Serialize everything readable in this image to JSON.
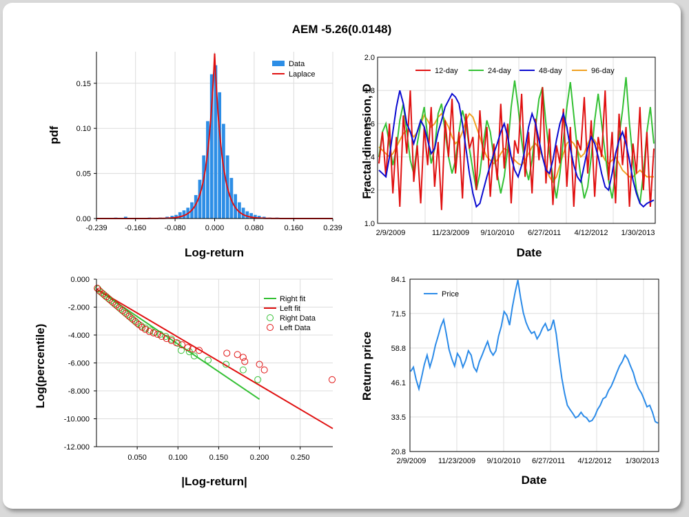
{
  "title": "AEM -5.26(0.0148)",
  "colors": {
    "data_blue": "#2d8ee6",
    "fit_red": "#e01010",
    "c12": "#e01010",
    "c24": "#33c033",
    "c48": "#0a0ad0",
    "c96": "#f0a020",
    "price": "#2a8ae8",
    "right_green": "#33c033",
    "left_red": "#e01010"
  },
  "chart_data": [
    {
      "type": "bar",
      "name": "pdf",
      "xlabel": "Log-return",
      "ylabel": "pdf",
      "xlim": [
        -0.239,
        0.239
      ],
      "ylim": [
        0,
        0.185
      ],
      "xticks": [
        "-0.239",
        "-0.160",
        "-0.080",
        "0.000",
        "0.080",
        "0.160",
        "0.239"
      ],
      "xtick_values": [
        -0.239,
        -0.16,
        -0.08,
        0,
        0.08,
        0.16,
        0.239
      ],
      "yticks": [
        "0.00",
        "0.05",
        "0.10",
        "0.15"
      ],
      "ytick_values": [
        0,
        0.05,
        0.1,
        0.15
      ],
      "legend": [
        "Data",
        "Laplace"
      ],
      "legend_position": "top-right",
      "laplace": {
        "mu": 0.0,
        "peak": 0.183,
        "scale": 0.0155
      },
      "bins": [
        {
          "x": -0.2,
          "y": 0.001
        },
        {
          "x": -0.18,
          "y": 0.002
        },
        {
          "x": -0.132,
          "y": 0.001
        },
        {
          "x": -0.11,
          "y": 0.001
        },
        {
          "x": -0.096,
          "y": 0.002
        },
        {
          "x": -0.086,
          "y": 0.003
        },
        {
          "x": -0.078,
          "y": 0.004
        },
        {
          "x": -0.07,
          "y": 0.007
        },
        {
          "x": -0.062,
          "y": 0.009
        },
        {
          "x": -0.054,
          "y": 0.012
        },
        {
          "x": -0.046,
          "y": 0.018
        },
        {
          "x": -0.038,
          "y": 0.026
        },
        {
          "x": -0.03,
          "y": 0.043
        },
        {
          "x": -0.022,
          "y": 0.07
        },
        {
          "x": -0.014,
          "y": 0.108
        },
        {
          "x": -0.006,
          "y": 0.16
        },
        {
          "x": 0.002,
          "y": 0.17
        },
        {
          "x": 0.01,
          "y": 0.14
        },
        {
          "x": 0.018,
          "y": 0.105
        },
        {
          "x": 0.026,
          "y": 0.07
        },
        {
          "x": 0.034,
          "y": 0.045
        },
        {
          "x": 0.042,
          "y": 0.027
        },
        {
          "x": 0.05,
          "y": 0.018
        },
        {
          "x": 0.058,
          "y": 0.012
        },
        {
          "x": 0.066,
          "y": 0.008
        },
        {
          "x": 0.074,
          "y": 0.006
        },
        {
          "x": 0.082,
          "y": 0.004
        },
        {
          "x": 0.09,
          "y": 0.003
        },
        {
          "x": 0.1,
          "y": 0.002
        },
        {
          "x": 0.112,
          "y": 0.001
        },
        {
          "x": 0.126,
          "y": 0.001
        }
      ]
    },
    {
      "type": "line",
      "name": "fractal",
      "xlabel": "Date",
      "ylabel": "Fractal dimension, D",
      "ylim": [
        1.0,
        2.0
      ],
      "yticks": [
        "1.0",
        "1.2",
        "1.4",
        "1.6",
        "1.8",
        "2.0"
      ],
      "ytick_values": [
        1.0,
        1.2,
        1.4,
        1.6,
        1.8,
        2.0
      ],
      "xticks": [
        "2/9/2009",
        "11/23/2009",
        "9/10/2010",
        "6/27/2011",
        "4/12/2012",
        "1/30/2013"
      ],
      "legend_position": "top-left",
      "series": [
        {
          "name": "12-day",
          "values": [
            1.36,
            1.55,
            1.28,
            1.6,
            1.18,
            1.52,
            1.1,
            1.65,
            1.42,
            1.8,
            1.25,
            1.47,
            1.12,
            1.58,
            1.35,
            1.7,
            1.22,
            1.49,
            1.08,
            1.62,
            1.4,
            1.75,
            1.3,
            1.55,
            1.15,
            1.66,
            1.45,
            1.52,
            1.2,
            1.68,
            1.38,
            1.58,
            1.16,
            1.48,
            1.26,
            1.72,
            1.33,
            1.6,
            1.12,
            1.5,
            1.42,
            1.78,
            1.28,
            1.55,
            1.18,
            1.63,
            1.38,
            1.82,
            1.24,
            1.57,
            1.11,
            1.47,
            1.36,
            1.69,
            1.22,
            1.58,
            1.1,
            1.5,
            1.44,
            1.76,
            1.3,
            1.62,
            1.16,
            1.52,
            1.4,
            1.8,
            1.26,
            1.55,
            1.12,
            1.66,
            1.35,
            1.58,
            1.1,
            1.48,
            1.3,
            1.7,
            1.2,
            1.55,
            1.1,
            1.45
          ]
        },
        {
          "name": "24-day",
          "values": [
            1.4,
            1.55,
            1.6,
            1.48,
            1.35,
            1.45,
            1.62,
            1.72,
            1.55,
            1.38,
            1.3,
            1.48,
            1.6,
            1.7,
            1.52,
            1.36,
            1.45,
            1.66,
            1.72,
            1.55,
            1.4,
            1.3,
            1.38,
            1.55,
            1.68,
            1.6,
            1.45,
            1.32,
            1.2,
            1.3,
            1.48,
            1.62,
            1.55,
            1.4,
            1.3,
            1.18,
            1.28,
            1.45,
            1.7,
            1.86,
            1.7,
            1.5,
            1.35,
            1.26,
            1.38,
            1.58,
            1.75,
            1.82,
            1.6,
            1.42,
            1.28,
            1.15,
            1.3,
            1.5,
            1.7,
            1.85,
            1.65,
            1.45,
            1.28,
            1.15,
            1.22,
            1.4,
            1.62,
            1.78,
            1.6,
            1.42,
            1.26,
            1.15,
            1.3,
            1.52,
            1.68,
            1.88,
            1.6,
            1.38,
            1.2,
            1.12,
            1.3,
            1.55,
            1.7,
            1.48
          ]
        },
        {
          "name": "48-day",
          "values": [
            1.32,
            1.3,
            1.28,
            1.4,
            1.55,
            1.7,
            1.8,
            1.72,
            1.6,
            1.55,
            1.48,
            1.55,
            1.62,
            1.58,
            1.5,
            1.42,
            1.45,
            1.55,
            1.62,
            1.7,
            1.74,
            1.78,
            1.76,
            1.72,
            1.6,
            1.45,
            1.3,
            1.18,
            1.1,
            1.12,
            1.2,
            1.28,
            1.35,
            1.42,
            1.48,
            1.55,
            1.6,
            1.52,
            1.4,
            1.32,
            1.28,
            1.35,
            1.45,
            1.58,
            1.66,
            1.6,
            1.5,
            1.4,
            1.32,
            1.3,
            1.38,
            1.5,
            1.6,
            1.66,
            1.58,
            1.45,
            1.35,
            1.28,
            1.25,
            1.35,
            1.45,
            1.52,
            1.48,
            1.4,
            1.3,
            1.22,
            1.2,
            1.3,
            1.42,
            1.5,
            1.55,
            1.48,
            1.38,
            1.26,
            1.18,
            1.12,
            1.1,
            1.12,
            1.13,
            1.14
          ]
        },
        {
          "name": "96-day",
          "values": [
            1.46,
            1.44,
            1.42,
            1.4,
            1.42,
            1.46,
            1.5,
            1.54,
            1.56,
            1.55,
            1.52,
            1.55,
            1.6,
            1.65,
            1.62,
            1.58,
            1.6,
            1.64,
            1.66,
            1.62,
            1.58,
            1.52,
            1.48,
            1.5,
            1.55,
            1.62,
            1.66,
            1.64,
            1.58,
            1.52,
            1.45,
            1.4,
            1.38,
            1.36,
            1.38,
            1.42,
            1.45,
            1.44,
            1.4,
            1.38,
            1.36,
            1.35,
            1.38,
            1.42,
            1.46,
            1.48,
            1.45,
            1.4,
            1.34,
            1.28,
            1.25,
            1.28,
            1.35,
            1.42,
            1.48,
            1.5,
            1.48,
            1.44,
            1.4,
            1.42,
            1.48,
            1.52,
            1.5,
            1.46,
            1.42,
            1.38,
            1.36,
            1.38,
            1.4,
            1.36,
            1.32,
            1.3,
            1.28,
            1.28,
            1.3,
            1.32,
            1.3,
            1.28,
            1.28,
            1.28
          ]
        }
      ]
    },
    {
      "type": "scatter",
      "name": "tail",
      "xlabel": "|Log-return|",
      "ylabel": "Log(percentile)",
      "xlim": [
        0,
        0.29
      ],
      "ylim": [
        -12,
        0
      ],
      "xticks": [
        "0.050",
        "0.100",
        "0.150",
        "0.200",
        "0.250"
      ],
      "xtick_values": [
        0.05,
        0.1,
        0.15,
        0.2,
        0.25
      ],
      "yticks": [
        "0.000",
        "-2.000",
        "-4.000",
        "-6.000",
        "-8.000",
        "-10.000",
        "-12.000"
      ],
      "ytick_values": [
        0,
        -2,
        -4,
        -6,
        -8,
        -10,
        -12
      ],
      "legend": [
        "Right fit",
        "Left fit",
        "Right Data",
        "Left Data"
      ],
      "legend_position": "top-right",
      "right_fit": [
        [
          0,
          -0.7
        ],
        [
          0.2,
          -8.6
        ]
      ],
      "left_fit": [
        [
          0,
          -0.7
        ],
        [
          0.29,
          -10.7
        ]
      ],
      "right_data": [
        [
          0.002,
          -0.7
        ],
        [
          0.006,
          -0.95
        ],
        [
          0.01,
          -1.15
        ],
        [
          0.014,
          -1.35
        ],
        [
          0.018,
          -1.55
        ],
        [
          0.022,
          -1.75
        ],
        [
          0.026,
          -1.95
        ],
        [
          0.03,
          -2.15
        ],
        [
          0.034,
          -2.35
        ],
        [
          0.038,
          -2.55
        ],
        [
          0.042,
          -2.75
        ],
        [
          0.046,
          -2.95
        ],
        [
          0.05,
          -3.15
        ],
        [
          0.055,
          -3.35
        ],
        [
          0.06,
          -3.5
        ],
        [
          0.066,
          -3.65
        ],
        [
          0.072,
          -3.8
        ],
        [
          0.078,
          -3.95
        ],
        [
          0.085,
          -4.1
        ],
        [
          0.092,
          -4.3
        ],
        [
          0.1,
          -4.6
        ],
        [
          0.104,
          -5.1
        ],
        [
          0.114,
          -5.2
        ],
        [
          0.12,
          -5.5
        ],
        [
          0.137,
          -5.8
        ],
        [
          0.159,
          -6.1
        ],
        [
          0.18,
          -6.5
        ],
        [
          0.198,
          -7.2
        ]
      ],
      "left_data": [
        [
          0.001,
          -0.65
        ],
        [
          0.004,
          -0.85
        ],
        [
          0.008,
          -1.05
        ],
        [
          0.012,
          -1.25
        ],
        [
          0.016,
          -1.45
        ],
        [
          0.02,
          -1.65
        ],
        [
          0.024,
          -1.85
        ],
        [
          0.028,
          -2.05
        ],
        [
          0.032,
          -2.25
        ],
        [
          0.036,
          -2.45
        ],
        [
          0.04,
          -2.65
        ],
        [
          0.044,
          -2.85
        ],
        [
          0.048,
          -3.05
        ],
        [
          0.052,
          -3.25
        ],
        [
          0.056,
          -3.45
        ],
        [
          0.06,
          -3.6
        ],
        [
          0.065,
          -3.75
        ],
        [
          0.07,
          -3.85
        ],
        [
          0.075,
          -3.95
        ],
        [
          0.08,
          -4.1
        ],
        [
          0.086,
          -4.25
        ],
        [
          0.092,
          -4.4
        ],
        [
          0.098,
          -4.55
        ],
        [
          0.105,
          -4.7
        ],
        [
          0.112,
          -4.9
        ],
        [
          0.118,
          -5.0
        ],
        [
          0.126,
          -5.1
        ],
        [
          0.16,
          -5.3
        ],
        [
          0.173,
          -5.4
        ],
        [
          0.18,
          -5.6
        ],
        [
          0.182,
          -5.9
        ],
        [
          0.2,
          -6.1
        ],
        [
          0.206,
          -6.5
        ],
        [
          0.29,
          -7.2
        ]
      ]
    },
    {
      "type": "line",
      "name": "price",
      "xlabel": "Date",
      "ylabel": "Return price",
      "ylim": [
        20.8,
        84.1
      ],
      "yticks": [
        "84.1",
        "71.5",
        "58.8",
        "46.1",
        "33.5",
        "20.8"
      ],
      "ytick_values": [
        84.1,
        71.5,
        58.8,
        46.1,
        33.5,
        20.8
      ],
      "xticks": [
        "2/9/2009",
        "11/23/2009",
        "9/10/2010",
        "6/27/2011",
        "4/12/2012",
        "1/30/2013"
      ],
      "legend_position": "top-left",
      "series": [
        {
          "name": "Price",
          "values": [
            50,
            52,
            47,
            44,
            48,
            53,
            56,
            52,
            55,
            60,
            63,
            67,
            69,
            64,
            58,
            55,
            52,
            57,
            55,
            52,
            54,
            58,
            56,
            52,
            50,
            54,
            56,
            59,
            61,
            58,
            56,
            58,
            63,
            67,
            72,
            71,
            67,
            74,
            79,
            84,
            77,
            72,
            68,
            66,
            64,
            65,
            62,
            64,
            66,
            68,
            65,
            66,
            69,
            64,
            55,
            48,
            42,
            38,
            36,
            35,
            33,
            34,
            35,
            34,
            33,
            32,
            32,
            34,
            36,
            38,
            40,
            41,
            43,
            45,
            47,
            50,
            52,
            54,
            56,
            55,
            52,
            50,
            46,
            44,
            42,
            40,
            37,
            38,
            35,
            32,
            31
          ]
        }
      ]
    }
  ]
}
